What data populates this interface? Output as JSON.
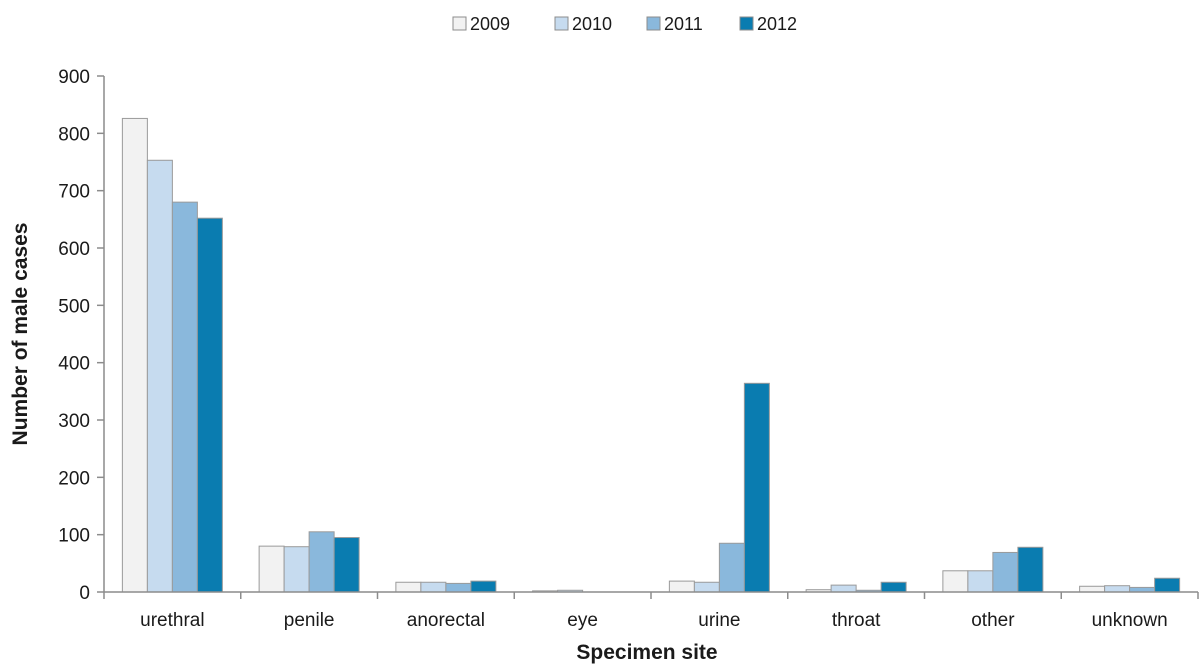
{
  "chart_data": {
    "type": "bar",
    "xlabel": "Specimen site",
    "ylabel": "Number of male cases",
    "ylim": [
      0,
      900
    ],
    "yticks": [
      0,
      100,
      200,
      300,
      400,
      500,
      600,
      700,
      800,
      900
    ],
    "categories": [
      "urethral",
      "penile",
      "anorectal",
      "eye",
      "urine",
      "throat",
      "other",
      "unknown"
    ],
    "series": [
      {
        "name": "2009",
        "color": "#f2f2f2",
        "values": [
          826,
          80,
          17,
          2,
          19,
          4,
          37,
          10
        ]
      },
      {
        "name": "2010",
        "color": "#c6dbef",
        "values": [
          753,
          79,
          17,
          3,
          17,
          12,
          37,
          11
        ]
      },
      {
        "name": "2011",
        "color": "#8ab8dc",
        "values": [
          680,
          105,
          15,
          0,
          85,
          3,
          69,
          8
        ]
      },
      {
        "name": "2012",
        "color": "#0a7cb0",
        "values": [
          652,
          95,
          19,
          0,
          364,
          17,
          78,
          24
        ]
      }
    ],
    "legend_position": "top-center",
    "grid": false
  }
}
